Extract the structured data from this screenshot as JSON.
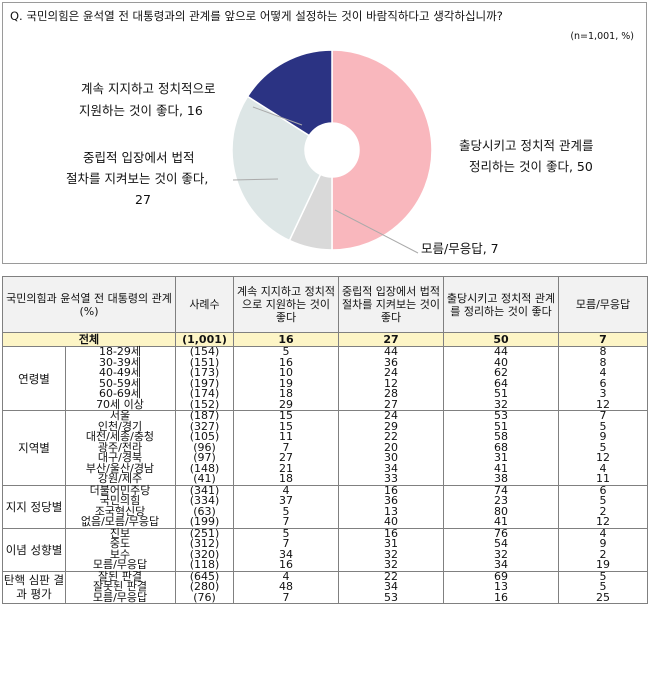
{
  "chart_data": {
    "type": "pie",
    "title": "Q. 국민의힘은 윤석열 전 대통령과의 관계를 앞으로 어떻게 설정하는 것이 바람직하다고 생각하십니까?",
    "note": "(n=1,001,  %)",
    "slices": [
      {
        "label": "출당시키고 정치적 관계를 정리하는 것이 좋다",
        "value": 50,
        "color": "#f9b7bd"
      },
      {
        "label": "모름/무응답",
        "value": 7,
        "color": "#d9d9d9"
      },
      {
        "label": "중립적 입장에서 법적 절차를 지켜보는 것이 좋다",
        "value": 27,
        "color": "#dde6e6"
      },
      {
        "label": "계속 지지하고 정치적으로 지원하는 것이 좋다",
        "value": 16,
        "color": "#2b3383"
      }
    ],
    "slice_labels": {
      "s0": [
        "출당시키고 정치적 관계를",
        "정리하는 것이 좋다, 50"
      ],
      "s1": [
        "모름/무응답, 7"
      ],
      "s2": [
        "중립적 입장에서 법적",
        "절차를 지켜보는 것이 좋다,",
        "27"
      ],
      "s3": [
        "계속 지지하고 정치적으로",
        "지원하는 것이 좋다, 16"
      ]
    }
  },
  "table": {
    "headers": {
      "group": "국민의힘과 윤석열 전 대통령의 관계 (%)",
      "n": "사례수",
      "c1": "계속 지지하고 정치적으로 지원하는 것이 좋다",
      "c2": "중립적 입장에서 법적 절차를 지켜보는 것이 좋다",
      "c3": "출당시키고 정치적 관계를 정리하는 것이 좋다",
      "c4": "모름/무응답"
    },
    "total": {
      "label": "전체",
      "n": "(1,001)",
      "v": [
        "16",
        "27",
        "50",
        "7"
      ]
    },
    "groups": [
      {
        "name": "연령별",
        "rows": [
          {
            "label": "18-29세",
            "n": "(154)",
            "v": [
              "5",
              "44",
              "44",
              "8"
            ]
          },
          {
            "label": "30-39세",
            "n": "(151)",
            "v": [
              "16",
              "36",
              "40",
              "8"
            ]
          },
          {
            "label": "40-49세",
            "n": "(173)",
            "v": [
              "10",
              "24",
              "62",
              "4"
            ]
          },
          {
            "label": "50-59세",
            "n": "(197)",
            "v": [
              "19",
              "12",
              "64",
              "6"
            ]
          },
          {
            "label": "60-69세",
            "n": "(174)",
            "v": [
              "18",
              "28",
              "51",
              "3"
            ]
          },
          {
            "label": "70세 이상",
            "n": "(152)",
            "v": [
              "29",
              "27",
              "32",
              "12"
            ]
          }
        ]
      },
      {
        "name": "지역별",
        "rows": [
          {
            "label": "서울",
            "n": "(187)",
            "v": [
              "15",
              "24",
              "53",
              "7"
            ]
          },
          {
            "label": "인천/경기",
            "n": "(327)",
            "v": [
              "15",
              "29",
              "51",
              "5"
            ]
          },
          {
            "label": "대전/세종/충청",
            "n": "(105)",
            "v": [
              "11",
              "22",
              "58",
              "9"
            ]
          },
          {
            "label": "광주/전라",
            "n": "(96)",
            "v": [
              "7",
              "20",
              "68",
              "5"
            ]
          },
          {
            "label": "대구/경북",
            "n": "(97)",
            "v": [
              "27",
              "30",
              "31",
              "12"
            ]
          },
          {
            "label": "부산/울산/경남",
            "n": "(148)",
            "v": [
              "21",
              "34",
              "41",
              "4"
            ]
          },
          {
            "label": "강원/제주",
            "n": "(41)",
            "v": [
              "18",
              "33",
              "38",
              "11"
            ]
          }
        ]
      },
      {
        "name": "지지 정당별",
        "rows": [
          {
            "label": "더불어민주당",
            "n": "(341)",
            "v": [
              "4",
              "16",
              "74",
              "6"
            ]
          },
          {
            "label": "국민의힘",
            "n": "(334)",
            "v": [
              "37",
              "36",
              "23",
              "5"
            ]
          },
          {
            "label": "조국혁신당",
            "n": "(63)",
            "v": [
              "5",
              "13",
              "80",
              "2"
            ]
          },
          {
            "label": "없음/모름/무응답",
            "n": "(199)",
            "v": [
              "7",
              "40",
              "41",
              "12"
            ]
          }
        ]
      },
      {
        "name": "이념 성향별",
        "rows": [
          {
            "label": "진보",
            "n": "(251)",
            "v": [
              "5",
              "16",
              "76",
              "4"
            ]
          },
          {
            "label": "중도",
            "n": "(312)",
            "v": [
              "7",
              "31",
              "54",
              "9"
            ]
          },
          {
            "label": "보수",
            "n": "(320)",
            "v": [
              "34",
              "32",
              "32",
              "2"
            ]
          },
          {
            "label": "모름/무응답",
            "n": "(118)",
            "v": [
              "16",
              "32",
              "34",
              "19"
            ]
          }
        ]
      },
      {
        "name": "탄핵 심판 결과 평가",
        "rows": [
          {
            "label": "잘된 판결",
            "n": "(645)",
            "v": [
              "4",
              "22",
              "69",
              "5"
            ]
          },
          {
            "label": "잘못된 판결",
            "n": "(280)",
            "v": [
              "48",
              "34",
              "13",
              "5"
            ]
          },
          {
            "label": "모름/무응답",
            "n": "(76)",
            "v": [
              "7",
              "53",
              "16",
              "25"
            ]
          }
        ]
      }
    ]
  }
}
